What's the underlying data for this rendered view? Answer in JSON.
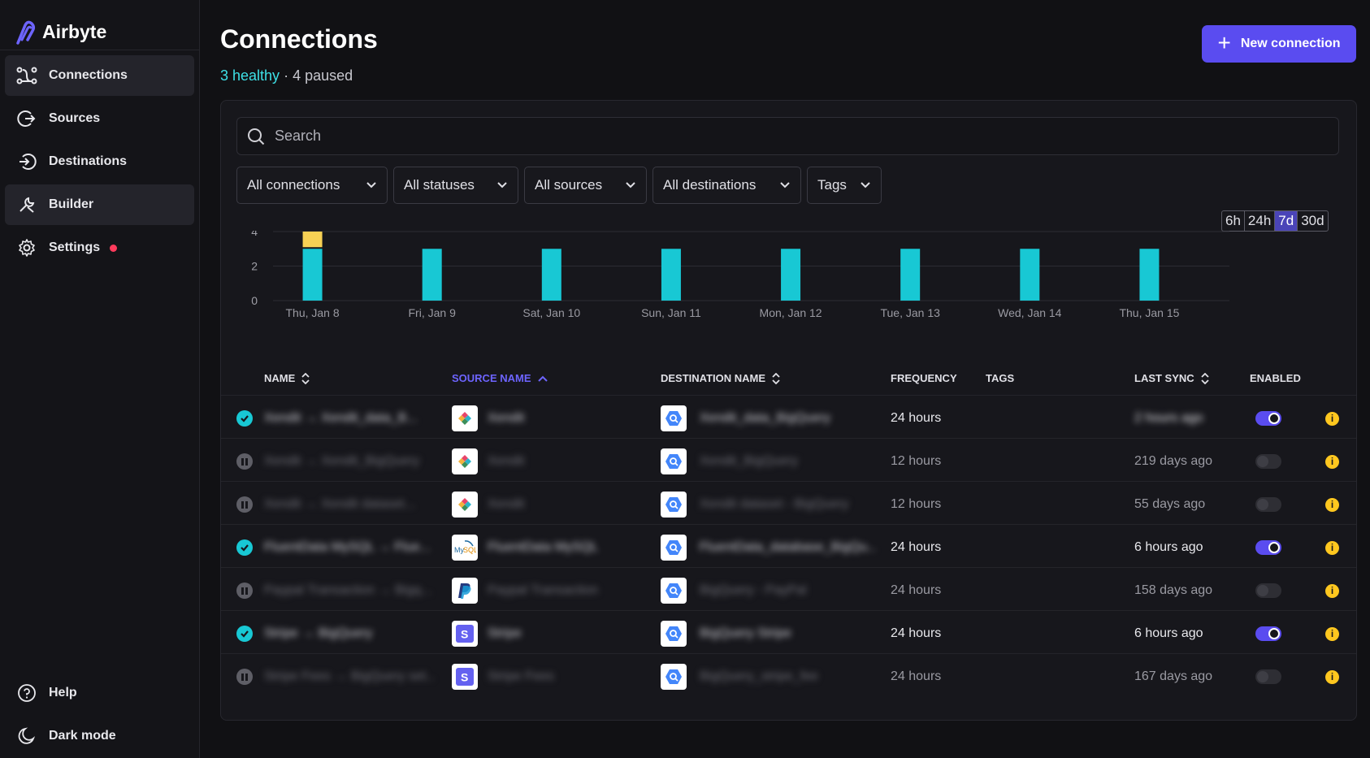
{
  "app": {
    "name": "Airbyte"
  },
  "sidebar": {
    "items": [
      {
        "label": "Connections",
        "icon": "connections-icon"
      },
      {
        "label": "Sources",
        "icon": "sources-icon"
      },
      {
        "label": "Destinations",
        "icon": "destinations-icon"
      },
      {
        "label": "Builder",
        "icon": "builder-icon"
      },
      {
        "label": "Settings",
        "icon": "gear-icon"
      }
    ],
    "bottom": [
      {
        "label": "Help",
        "icon": "help-icon"
      },
      {
        "label": "Dark mode",
        "icon": "moon-icon"
      }
    ]
  },
  "header": {
    "title": "Connections",
    "healthy": "3 healthy",
    "separator": " · ",
    "paused": "4 paused",
    "new_button": "New connection"
  },
  "search": {
    "placeholder": "Search"
  },
  "filters": [
    "All connections",
    "All statuses",
    "All sources",
    "All destinations",
    "Tags"
  ],
  "time_range": {
    "options": [
      "6h",
      "24h",
      "7d",
      "30d"
    ],
    "selected": "7d"
  },
  "colors": {
    "accent": "#5a4cf0",
    "healthy": "#18c8d4",
    "warning": "#ffc71f"
  },
  "chart_data": {
    "type": "bar",
    "categories": [
      "Thu, Jan 8",
      "Fri, Jan 9",
      "Sat, Jan 10",
      "Sun, Jan 11",
      "Mon, Jan 12",
      "Tue, Jan 13",
      "Wed, Jan 14",
      "Thu, Jan 15"
    ],
    "series": [
      {
        "values": [
          3,
          3,
          3,
          3,
          3,
          3,
          3,
          3
        ],
        "color": "#18c8d4"
      },
      {
        "values": [
          1,
          0,
          0,
          0,
          0,
          0,
          0,
          0
        ],
        "color": "#f7d154"
      }
    ],
    "stacked": true,
    "yticks": [
      0,
      2,
      4
    ],
    "ylim": [
      0,
      4
    ]
  },
  "table": {
    "columns": [
      "NAME",
      "SOURCE NAME",
      "DESTINATION NAME",
      "FREQUENCY",
      "TAGS",
      "LAST SYNC",
      "ENABLED"
    ],
    "rows": [
      {
        "status": "healthy",
        "name": "Xendit → Xendit_data_B...",
        "source_logo": "xendit-logo",
        "source": "Xendit",
        "destination": "Xendit_data_BigQuery",
        "frequency": "24 hours",
        "last_sync": "2 hours ago",
        "enabled": true
      },
      {
        "status": "paused",
        "name": "Xendit → Xendit_BigQuery",
        "source_logo": "xendit-logo",
        "source": "Xendit",
        "destination": "Xendit_BigQuery",
        "frequency": "12 hours",
        "last_sync": "219 days ago",
        "enabled": false
      },
      {
        "status": "paused",
        "name": "Xendit → Xendit dataset...",
        "source_logo": "xendit-logo",
        "source": "Xendit",
        "destination": "Xendit dataset - BigQuery",
        "frequency": "12 hours",
        "last_sync": "55 days ago",
        "enabled": false
      },
      {
        "status": "healthy",
        "name": "FluentData MySQL → Flue...",
        "source_logo": "mysql-logo",
        "source": "FluentData MySQL",
        "destination": "FluentData_database_BigQu...",
        "frequency": "24 hours",
        "last_sync": "6 hours ago",
        "enabled": true
      },
      {
        "status": "paused",
        "name": "Paypal Transaction → Bigq...",
        "source_logo": "paypal-logo",
        "source": "Paypal Transaction",
        "destination": "BigQuery - PayPal",
        "frequency": "24 hours",
        "last_sync": "158 days ago",
        "enabled": false
      },
      {
        "status": "healthy",
        "name": "Stripe → BigQuery",
        "source_logo": "stripe-logo",
        "source": "Stripe",
        "destination": "BigQuery Stripe",
        "frequency": "24 hours",
        "last_sync": "6 hours ago",
        "enabled": true
      },
      {
        "status": "paused",
        "name": "Stripe Fees → BigQuery set...",
        "source_logo": "stripe-logo",
        "source": "Stripe Fees",
        "destination": "BigQuery_stripe_fee",
        "frequency": "24 hours",
        "last_sync": "167 days ago",
        "enabled": false
      }
    ]
  }
}
